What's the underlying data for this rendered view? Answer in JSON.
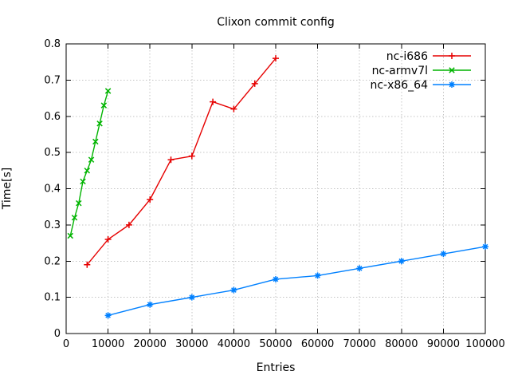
{
  "chart_data": {
    "type": "line",
    "title": "Clixon commit config",
    "xlabel": "Entries",
    "ylabel": "Time[s]",
    "xlim": [
      0,
      100000
    ],
    "ylim": [
      0,
      0.8
    ],
    "grid": true,
    "legend_position": "top-right-inside",
    "xticks": {
      "values": [
        0,
        10000,
        20000,
        30000,
        40000,
        50000,
        60000,
        70000,
        80000,
        90000,
        100000
      ],
      "labels": [
        "0",
        "10000",
        "20000",
        "30000",
        "40000",
        "50000",
        "60000",
        "70000",
        "80000",
        "90000",
        "100000"
      ]
    },
    "yticks": {
      "values": [
        0,
        0.1,
        0.2,
        0.3,
        0.4,
        0.5,
        0.6,
        0.7,
        0.8
      ],
      "labels": [
        "0",
        "0.1",
        "0.2",
        "0.3",
        "0.4",
        "0.5",
        "0.6",
        "0.7",
        "0.8"
      ]
    },
    "series": [
      {
        "name": "nc-i686",
        "color": "#e60000",
        "marker": "plus",
        "points": [
          [
            5000,
            0.19
          ],
          [
            10000,
            0.26
          ],
          [
            15000,
            0.3
          ],
          [
            20000,
            0.37
          ],
          [
            25000,
            0.48
          ],
          [
            30000,
            0.49
          ],
          [
            35000,
            0.64
          ],
          [
            40000,
            0.62
          ],
          [
            45000,
            0.69
          ],
          [
            50000,
            0.76
          ]
        ]
      },
      {
        "name": "nc-armv7l",
        "color": "#00b400",
        "marker": "cross",
        "points": [
          [
            1000,
            0.27
          ],
          [
            2000,
            0.32
          ],
          [
            3000,
            0.36
          ],
          [
            4000,
            0.42
          ],
          [
            5000,
            0.45
          ],
          [
            6000,
            0.48
          ],
          [
            7000,
            0.53
          ],
          [
            8000,
            0.58
          ],
          [
            9000,
            0.63
          ],
          [
            10000,
            0.67
          ]
        ]
      },
      {
        "name": "nc-x86_64",
        "color": "#0080ff",
        "marker": "asterisk",
        "points": [
          [
            10000,
            0.05
          ],
          [
            20000,
            0.08
          ],
          [
            30000,
            0.1
          ],
          [
            40000,
            0.12
          ],
          [
            50000,
            0.15
          ],
          [
            60000,
            0.16
          ],
          [
            70000,
            0.18
          ],
          [
            80000,
            0.2
          ],
          [
            90000,
            0.22
          ],
          [
            100000,
            0.24
          ]
        ]
      }
    ]
  },
  "colors": {
    "background": "#ffffff",
    "grid": "#c4c4c4",
    "axis": "#000000",
    "text": "#000000"
  }
}
